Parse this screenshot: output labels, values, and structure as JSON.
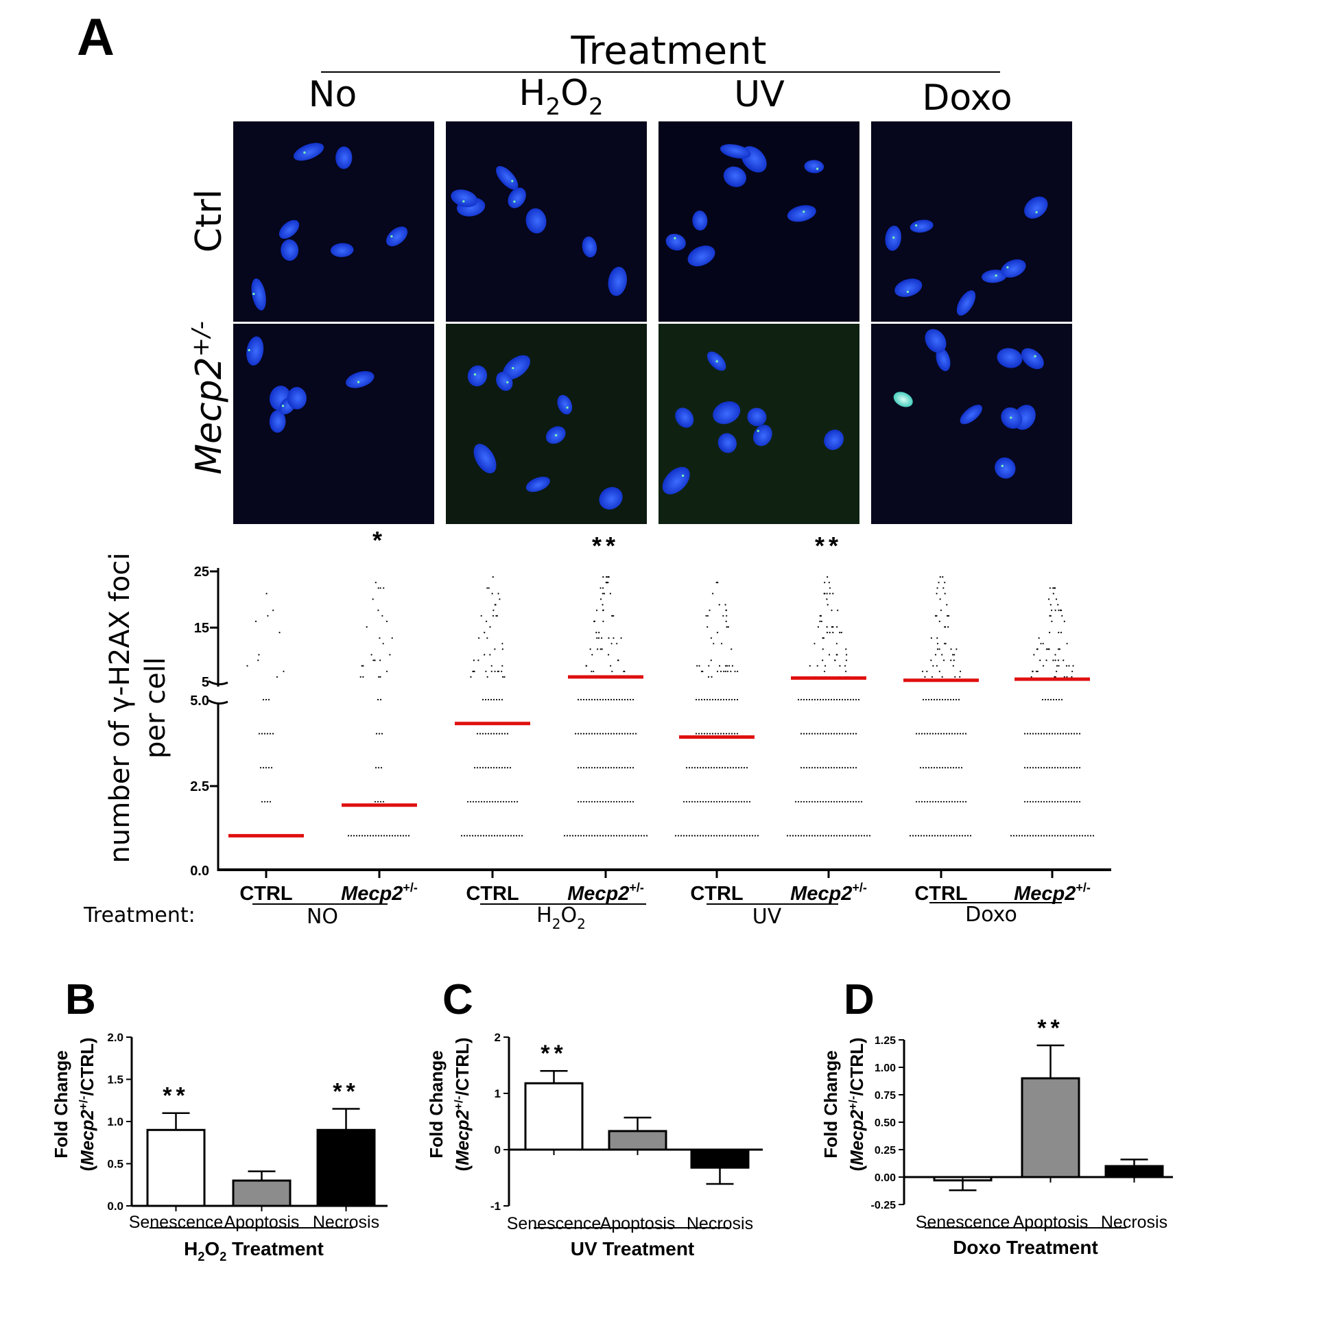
{
  "panel_a": {
    "letter": "A",
    "treatment_header": "Treatment",
    "columns": [
      "No",
      "H2O2",
      "UV",
      "Doxo"
    ],
    "rows": [
      "Ctrl",
      "Mecp2+/-"
    ],
    "dotplot": {
      "ylabel_line1": "number of γ-H2AX foci",
      "ylabel_line2": "per cell",
      "yticks_upper": [
        "25",
        "15",
        "5"
      ],
      "yticks_lower": [
        "5.0",
        "2.5",
        "0.0"
      ],
      "groups": [
        "CTRL",
        "Mecp2+/-",
        "CTRL",
        "Mecp2+/-",
        "CTRL",
        "Mecp2+/-",
        "CTRL",
        "Mecp2+/-"
      ],
      "treatment_label": "Treatment:",
      "treatments": [
        "NO",
        "H2O2",
        "UV",
        "Doxo"
      ],
      "significance": [
        "",
        "*",
        "",
        "**",
        "",
        "**",
        "",
        ""
      ]
    }
  },
  "panel_b": {
    "letter": "B",
    "ylabel": "Fold Change (Mecp2+/-/CTRL)",
    "xlabel": "H2O2 Treatment"
  },
  "panel_c": {
    "letter": "C",
    "ylabel": "Fold Change (Mecp2+/-/CTRL)",
    "xlabel": "UV Treatment"
  },
  "panel_d": {
    "letter": "D",
    "ylabel": "Fold Change (Mecp2+/-/CTRL)",
    "xlabel": "Doxo Treatment"
  },
  "chart_data": [
    {
      "type": "scatter",
      "subtype": "dot-plot-with-medians",
      "ylabel": "number of γ-H2AX foci per cell",
      "y_axis": "broken: 0.0–5.0 linear, 5–25 compressed",
      "categories": [
        "CTRL NO",
        "Mecp2+/- NO",
        "CTRL H2O2",
        "Mecp2+/- H2O2",
        "CTRL UV",
        "Mecp2+/- UV",
        "CTRL Doxo",
        "Mecp2+/- Doxo"
      ],
      "medians": [
        1.0,
        1.9,
        4.3,
        6.0,
        3.9,
        5.8,
        5.4,
        5.6
      ],
      "significance": [
        "",
        "*",
        "",
        "**",
        "",
        "**",
        "",
        ""
      ]
    },
    {
      "type": "bar",
      "xlabel": "H2O2 Treatment",
      "ylabel": "Fold Change (Mecp2+/-/CTRL)",
      "categories": [
        "Senescence",
        "Apoptosis",
        "Necrosis"
      ],
      "values": [
        0.9,
        0.3,
        0.9
      ],
      "errors": [
        0.2,
        0.11,
        0.25
      ],
      "colors": [
        "#ffffff",
        "#8c8c8c",
        "#000000"
      ],
      "significance": [
        "**",
        "",
        "**"
      ],
      "ylim": [
        0.0,
        2.0
      ],
      "yticks": [
        "0.0",
        "0.5",
        "1.0",
        "1.5",
        "2.0"
      ]
    },
    {
      "type": "bar",
      "xlabel": "UV Treatment",
      "ylabel": "Fold Change (Mecp2+/-/CTRL)",
      "categories": [
        "Senescence",
        "Apoptosis",
        "Necrosis"
      ],
      "values": [
        1.18,
        0.33,
        -0.32
      ],
      "errors": [
        0.22,
        0.24,
        0.29
      ],
      "colors": [
        "#ffffff",
        "#8c8c8c",
        "#000000"
      ],
      "significance": [
        "**",
        "",
        ""
      ],
      "ylim": [
        -1,
        2
      ],
      "yticks": [
        "-1",
        "0",
        "1",
        "2"
      ]
    },
    {
      "type": "bar",
      "xlabel": "Doxo Treatment",
      "ylabel": "Fold Change (Mecp2+/-/CTRL)",
      "categories": [
        "Senescence",
        "Apoptosis",
        "Necrosis"
      ],
      "values": [
        -0.03,
        0.9,
        0.1
      ],
      "errors": [
        0.09,
        0.3,
        0.06
      ],
      "colors": [
        "#ffffff",
        "#8c8c8c",
        "#000000"
      ],
      "significance": [
        "",
        "**",
        ""
      ],
      "ylim": [
        -0.25,
        1.25
      ],
      "yticks": [
        "-0.25",
        "0.00",
        "0.25",
        "0.50",
        "0.75",
        "1.00",
        "1.25"
      ]
    }
  ]
}
